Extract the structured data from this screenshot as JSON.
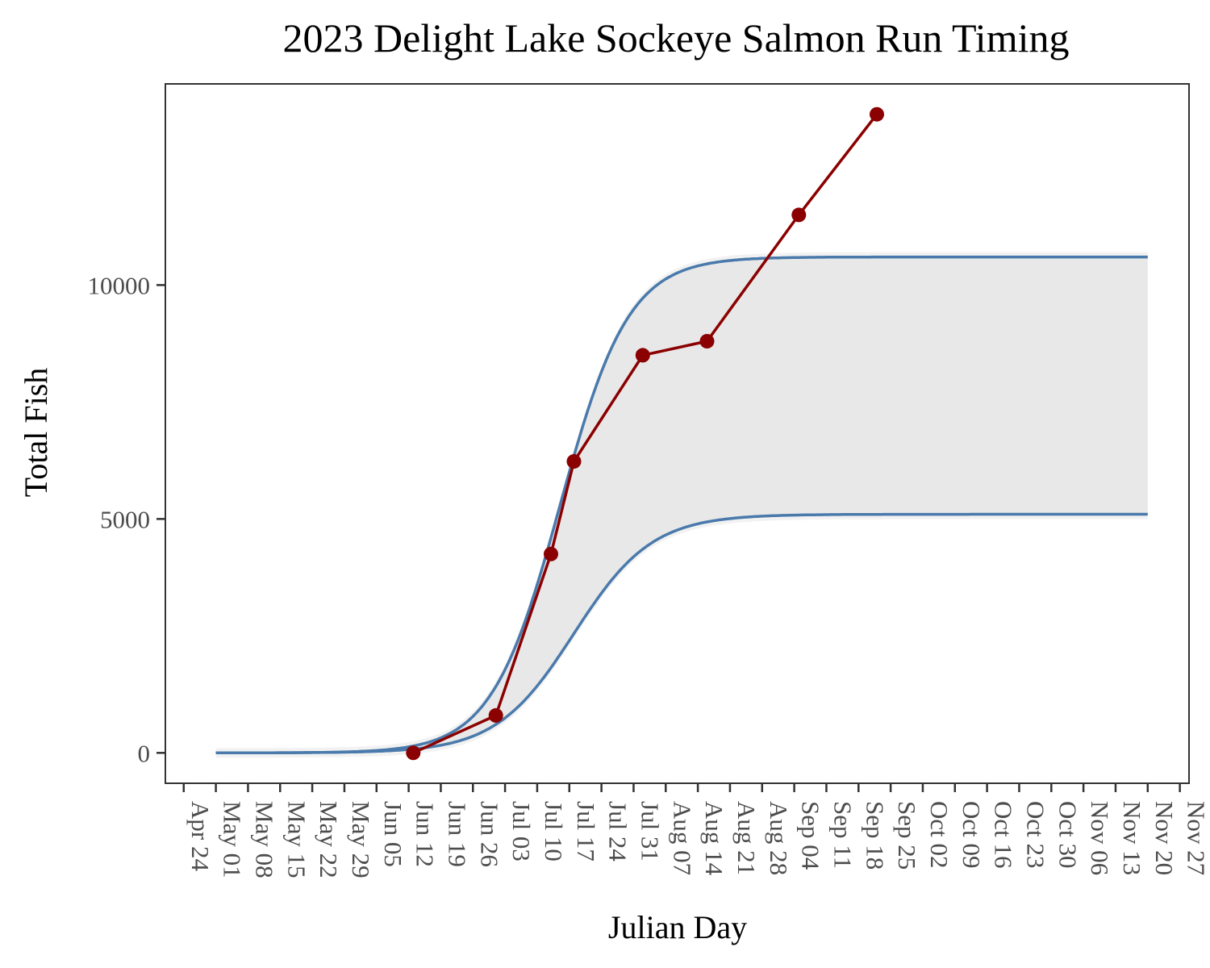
{
  "chart_data": {
    "type": "line",
    "title": "2023 Delight Lake Sockeye Salmon Run Timing",
    "xlabel": "Julian Day",
    "ylabel": "Total Fish",
    "xlim": [
      "2023-04-20",
      "2023-11-29"
    ],
    "ylim": [
      -650,
      14300
    ],
    "x_ticks": [
      "2023-04-24",
      "2023-05-01",
      "2023-05-08",
      "2023-05-15",
      "2023-05-22",
      "2023-05-29",
      "2023-06-05",
      "2023-06-12",
      "2023-06-19",
      "2023-06-26",
      "2023-07-03",
      "2023-07-10",
      "2023-07-17",
      "2023-07-24",
      "2023-07-31",
      "2023-08-07",
      "2023-08-14",
      "2023-08-21",
      "2023-08-28",
      "2023-09-04",
      "2023-09-11",
      "2023-09-18",
      "2023-09-25",
      "2023-10-02",
      "2023-10-09",
      "2023-10-16",
      "2023-10-23",
      "2023-10-30",
      "2023-11-06",
      "2023-11-13",
      "2023-11-20",
      "2023-11-27"
    ],
    "x_tick_labels": [
      "Apr 24",
      "May 01",
      "May 08",
      "May 15",
      "May 22",
      "May 29",
      "Jun 05",
      "Jun 12",
      "Jun 19",
      "Jun 26",
      "Jul 03",
      "Jul 10",
      "Jul 17",
      "Jul 24",
      "Jul 31",
      "Aug 07",
      "Aug 14",
      "Aug 21",
      "Aug 28",
      "Sep 04",
      "Sep 11",
      "Sep 18",
      "Sep 25",
      "Oct 02",
      "Oct 09",
      "Oct 16",
      "Oct 23",
      "Oct 30",
      "Nov 06",
      "Nov 13",
      "Nov 20",
      "Nov 27"
    ],
    "y_ticks": [
      0,
      5000,
      10000
    ],
    "y_tick_labels": [
      "0",
      "5000",
      "10000"
    ],
    "grid": false,
    "curve_x_range": [
      "2023-05-01",
      "2023-11-20"
    ],
    "upper_curve": {
      "asymptote": 10600,
      "midpoint": "2023-07-15",
      "scale_days": 7.5
    },
    "lower_curve": {
      "asymptote": 5100,
      "midpoint": "2023-07-18",
      "scale_days": 8.5
    },
    "series": [
      {
        "x": [
          "2023-06-13",
          "2023-07-01",
          "2023-07-13",
          "2023-07-18",
          "2023-08-02",
          "2023-08-16",
          "2023-09-05",
          "2023-09-22"
        ],
        "y": [
          0,
          800,
          4250,
          6230,
          8500,
          8800,
          11500,
          13650
        ]
      }
    ],
    "colors": {
      "observed": "#8b0000",
      "model_curve": "#4a7aab",
      "band": "#e8e8e8",
      "panel_border": "#333333",
      "tick_text": "#4d4d4d"
    }
  }
}
